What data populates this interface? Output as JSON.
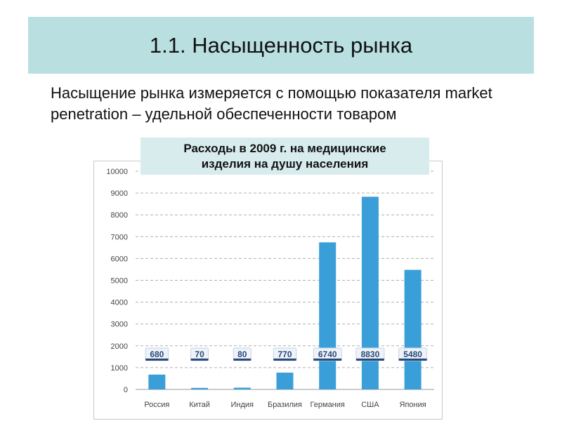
{
  "slide": {
    "title": "1.1. Насыщенность рынка",
    "body_text": "Насыщение рынка измеряется с помощью показателя market penetration – удельной обеспеченности товаром"
  },
  "colors": {
    "title_bg": "#b9dfe1",
    "chart_title_bg": "#d8ecee",
    "bar": "#3a9fd8",
    "grid": "#b0b0b0",
    "label_box_bg": "#eef3fa",
    "label_box_border": "#2b4a7a"
  },
  "chart_data": {
    "type": "bar",
    "title": "Расходы в 2009 г. на медицинские\nизделия на душу населения",
    "categories": [
      "Россия",
      "Китай",
      "Индия",
      "Бразилия",
      "Германия",
      "США",
      "Япония"
    ],
    "values": [
      680,
      70,
      80,
      770,
      6740,
      8830,
      5480
    ],
    "data_labels": [
      "680",
      "70",
      "80",
      "770",
      "6740",
      "8830",
      "5480"
    ],
    "yticks": [
      "0",
      "1000",
      "2000",
      "3000",
      "4000",
      "5000",
      "6000",
      "7000",
      "8000",
      "9000",
      "10000"
    ],
    "ylim": [
      0,
      10000
    ],
    "grid": true,
    "legend": "none",
    "xlabel": "",
    "ylabel": ""
  }
}
